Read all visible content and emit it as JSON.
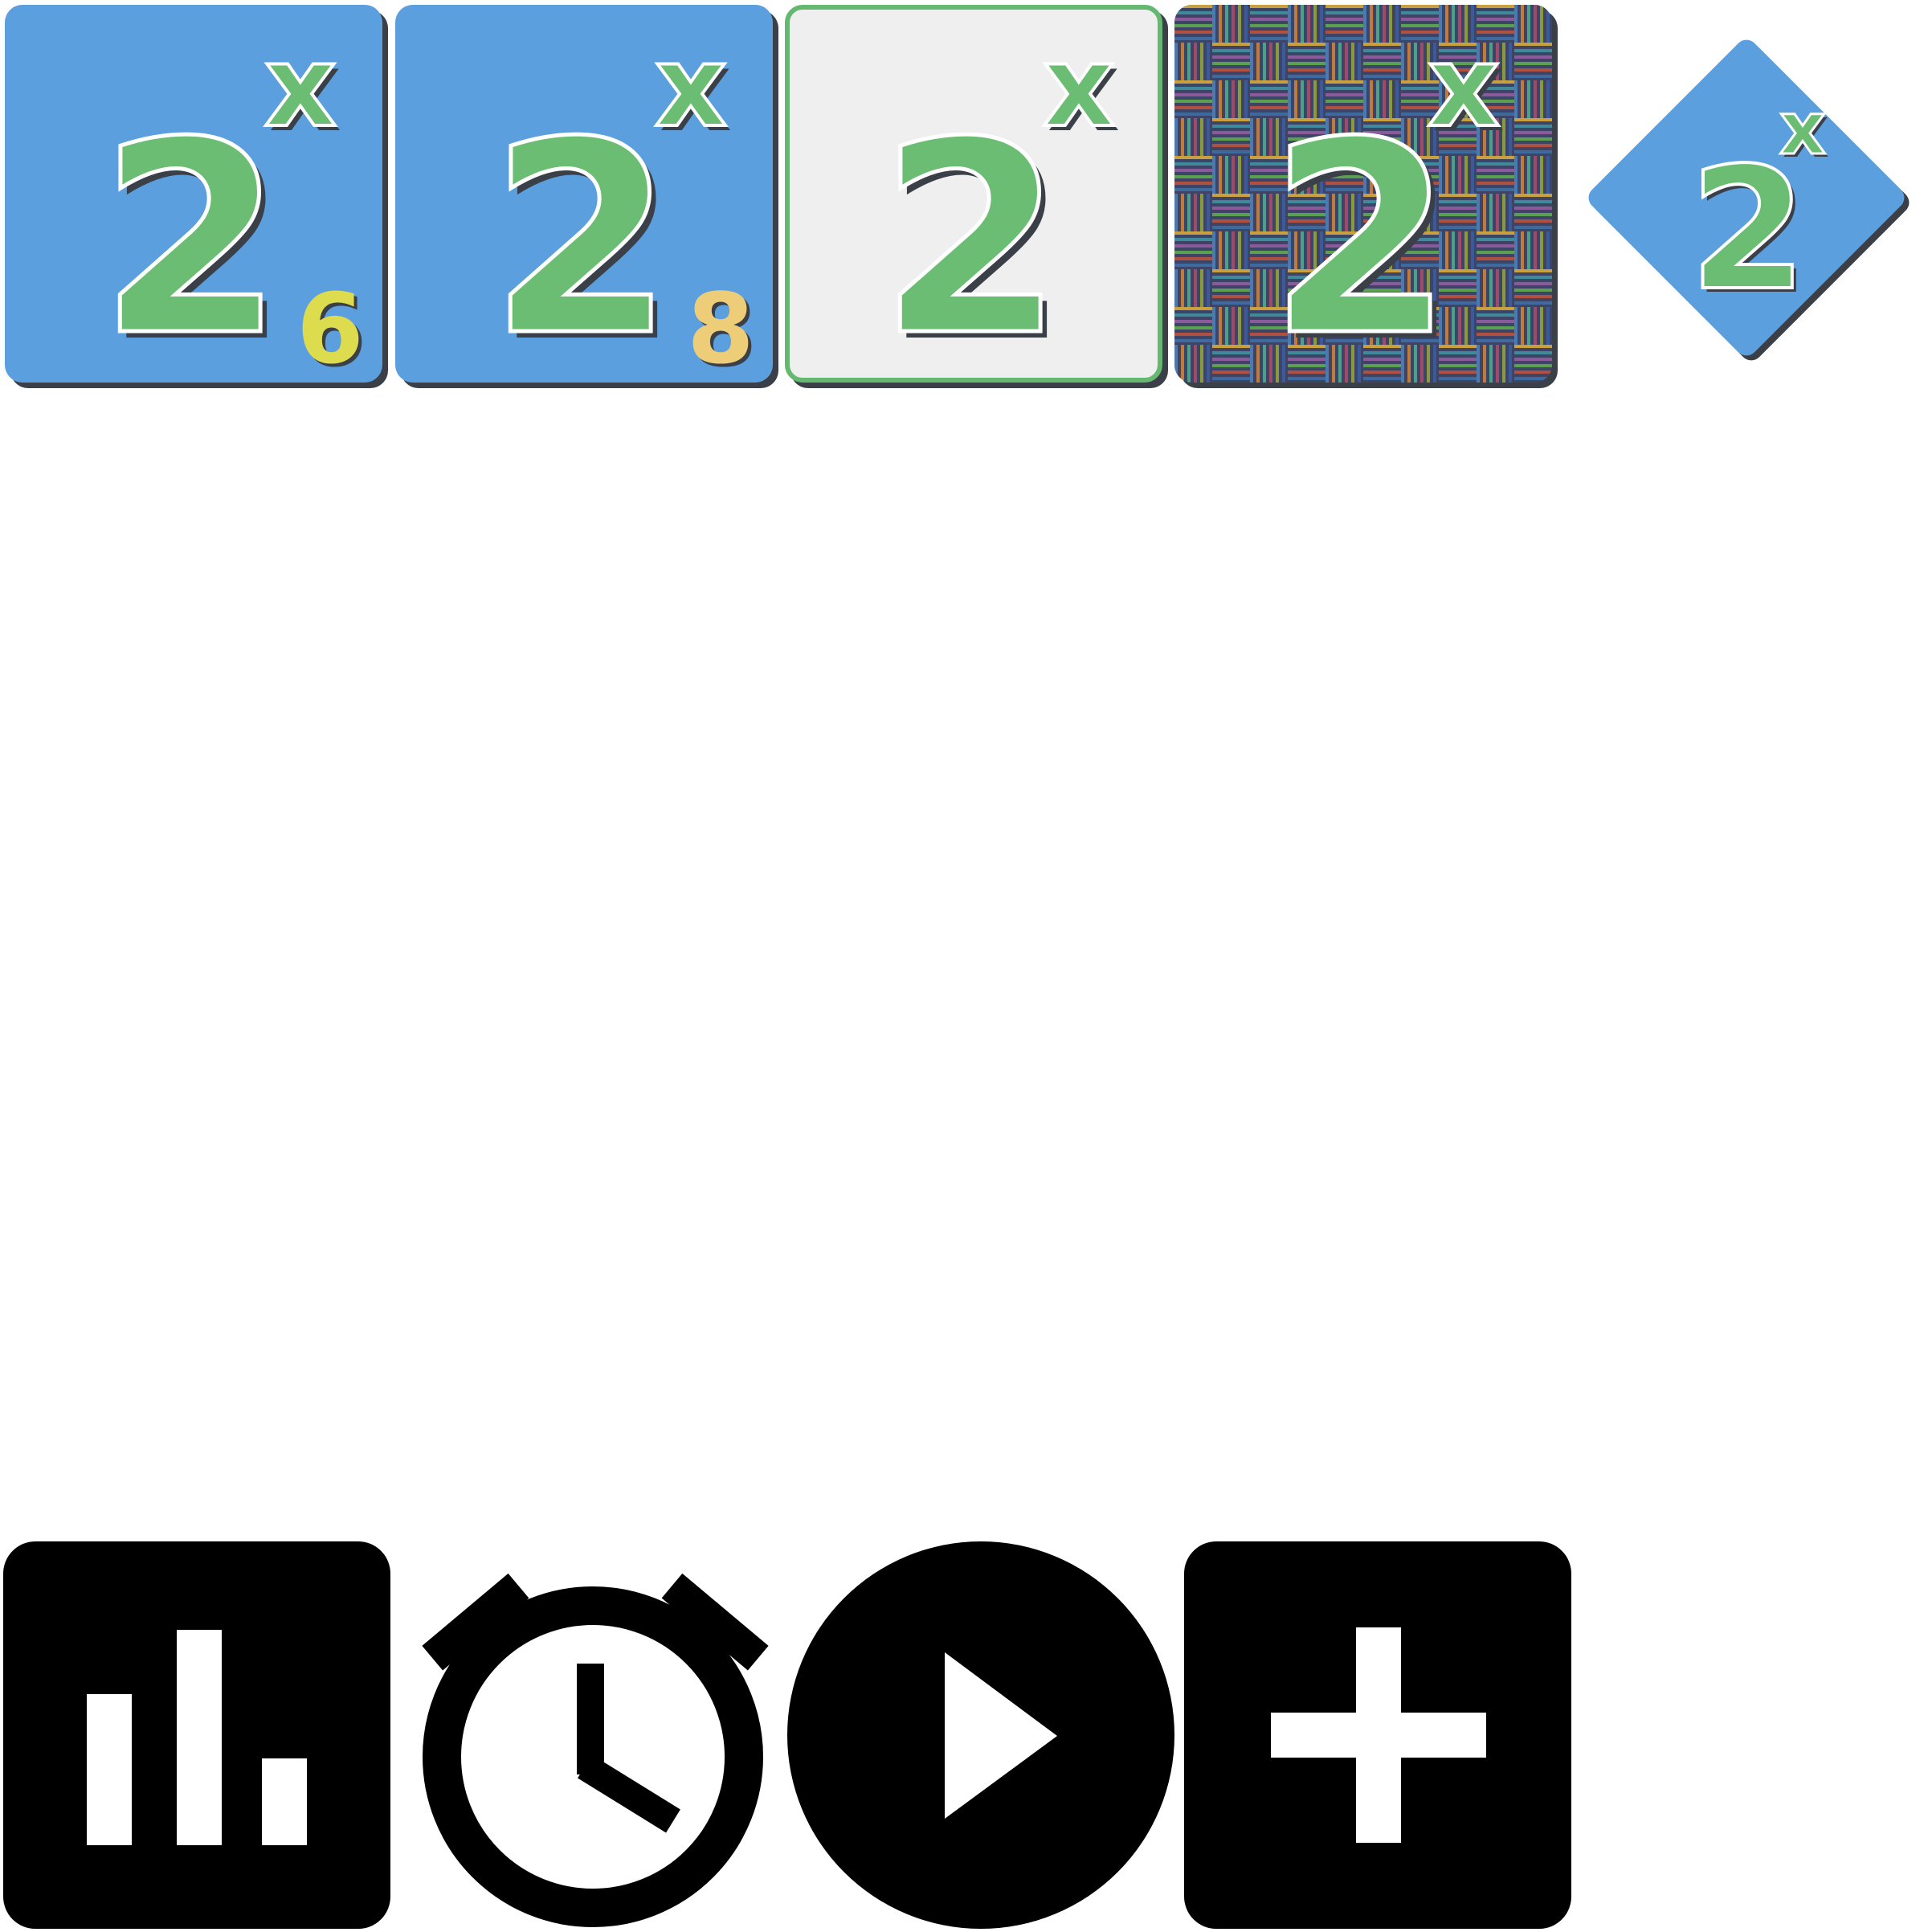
{
  "tiles": [
    {
      "base": "2",
      "exponent": "x",
      "badge": "6",
      "badge_color": "#dcdc4e",
      "style": "blue"
    },
    {
      "base": "2",
      "exponent": "x",
      "badge": "8",
      "badge_color": "#eecd78",
      "style": "blue"
    },
    {
      "base": "2",
      "exponent": "x",
      "badge": "",
      "style": "plain"
    },
    {
      "base": "2",
      "exponent": "x",
      "badge": "",
      "style": "woven"
    },
    {
      "base": "2",
      "exponent": "x",
      "badge": "",
      "style": "diamond"
    }
  ],
  "colors": {
    "tile_blue": "#5b9fde",
    "glyph_green": "#6abd72",
    "shadow": "#3a3f48",
    "plain_bg": "#efefef"
  },
  "controls": [
    {
      "name": "stats",
      "icon": "bar-chart-icon"
    },
    {
      "name": "timer",
      "icon": "stopwatch-icon"
    },
    {
      "name": "play",
      "icon": "play-icon"
    },
    {
      "name": "add",
      "icon": "plus-icon"
    }
  ]
}
